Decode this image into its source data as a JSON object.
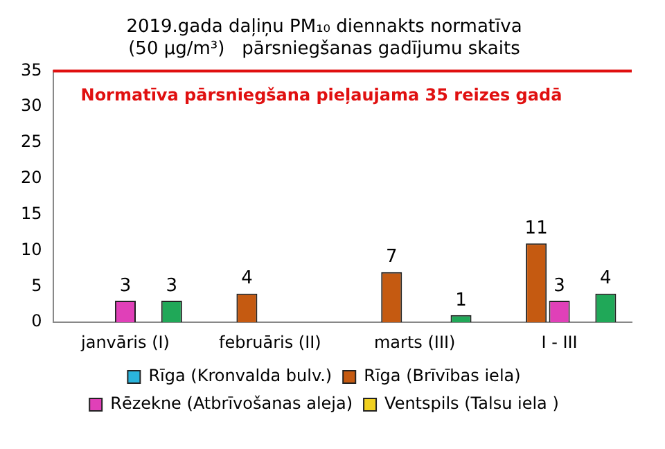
{
  "chart_data": {
    "type": "bar",
    "title": "2019.gada daļiņu PM₁₀ diennakts normatīva\n(50 µg/m³)   pārsniegšanas gadījumu skaits",
    "categories": [
      "janvāris (I)",
      "februāris (II)",
      "marts (III)",
      "I - III"
    ],
    "series": [
      {
        "name": "Rīga (Kronvalda bulv.)",
        "color": "#2ab4dc",
        "values": [
          null,
          null,
          null,
          null
        ]
      },
      {
        "name": "Rīga (Brīvības iela)",
        "color": "#c55a11",
        "values": [
          null,
          4,
          7,
          11
        ]
      },
      {
        "name": "Rēzekne (Atbrīvošanas aleja)",
        "color": "#e040b8",
        "values": [
          3,
          null,
          null,
          3
        ]
      },
      {
        "name": "Ventspils (Talsu iela )",
        "color": "#f0d020",
        "values": [
          null,
          null,
          null,
          null
        ]
      },
      {
        "color": "#20a858",
        "values": [
          3,
          null,
          1,
          4
        ]
      }
    ],
    "ylim": [
      0,
      35
    ],
    "yticks": [
      0,
      5,
      10,
      15,
      20,
      25,
      30,
      35
    ],
    "grid": false,
    "legend": "bottom",
    "data_labels": true,
    "ref_lines": [
      {
        "axis": "y",
        "value": 35,
        "label": "Normatīva pārsniegšana pieļaujama 35 reizes gadā",
        "color": "#e01010"
      }
    ]
  }
}
